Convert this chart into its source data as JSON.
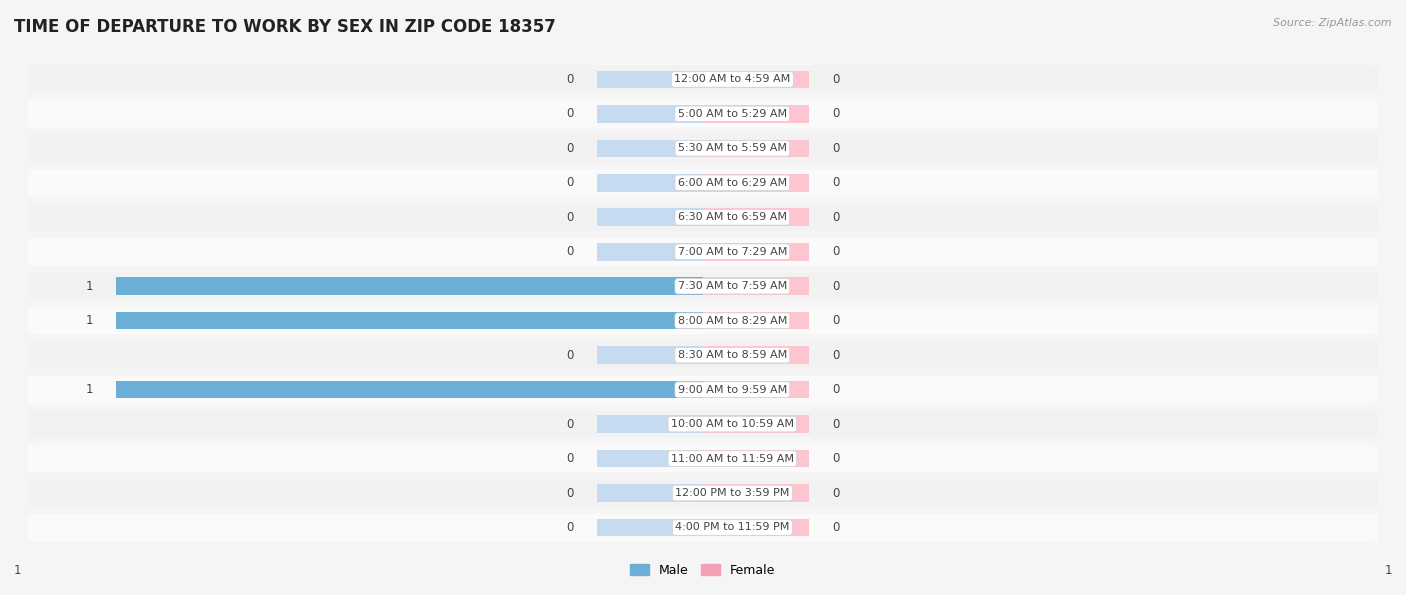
{
  "title": "TIME OF DEPARTURE TO WORK BY SEX IN ZIP CODE 18357",
  "source": "Source: ZipAtlas.com",
  "categories": [
    "12:00 AM to 4:59 AM",
    "5:00 AM to 5:29 AM",
    "5:30 AM to 5:59 AM",
    "6:00 AM to 6:29 AM",
    "6:30 AM to 6:59 AM",
    "7:00 AM to 7:29 AM",
    "7:30 AM to 7:59 AM",
    "8:00 AM to 8:29 AM",
    "8:30 AM to 8:59 AM",
    "9:00 AM to 9:59 AM",
    "10:00 AM to 10:59 AM",
    "11:00 AM to 11:59 AM",
    "12:00 PM to 3:59 PM",
    "4:00 PM to 11:59 PM"
  ],
  "male_values": [
    0,
    0,
    0,
    0,
    0,
    0,
    1,
    1,
    0,
    1,
    0,
    0,
    0,
    0
  ],
  "female_values": [
    0,
    0,
    0,
    0,
    0,
    0,
    0,
    0,
    0,
    0,
    0,
    0,
    0,
    0
  ],
  "male_color": "#6baed6",
  "female_color": "#f4a0b4",
  "bar_bg_male": "#c6dbef",
  "bar_bg_female": "#fcc5d0",
  "row_bg_light": "#f2f2f2",
  "row_bg_white": "#fafafa",
  "label_bg": "#ffffff",
  "label_border": "#d0d0d0",
  "label_text_color": "#444444",
  "value_text_color": "#444444",
  "fig_bg": "#f5f5f5",
  "title_color": "#222222",
  "source_color": "#999999",
  "max_val": 1,
  "title_fontsize": 12,
  "label_fontsize": 8.0,
  "value_fontsize": 8.5,
  "source_fontsize": 8,
  "legend_fontsize": 9
}
